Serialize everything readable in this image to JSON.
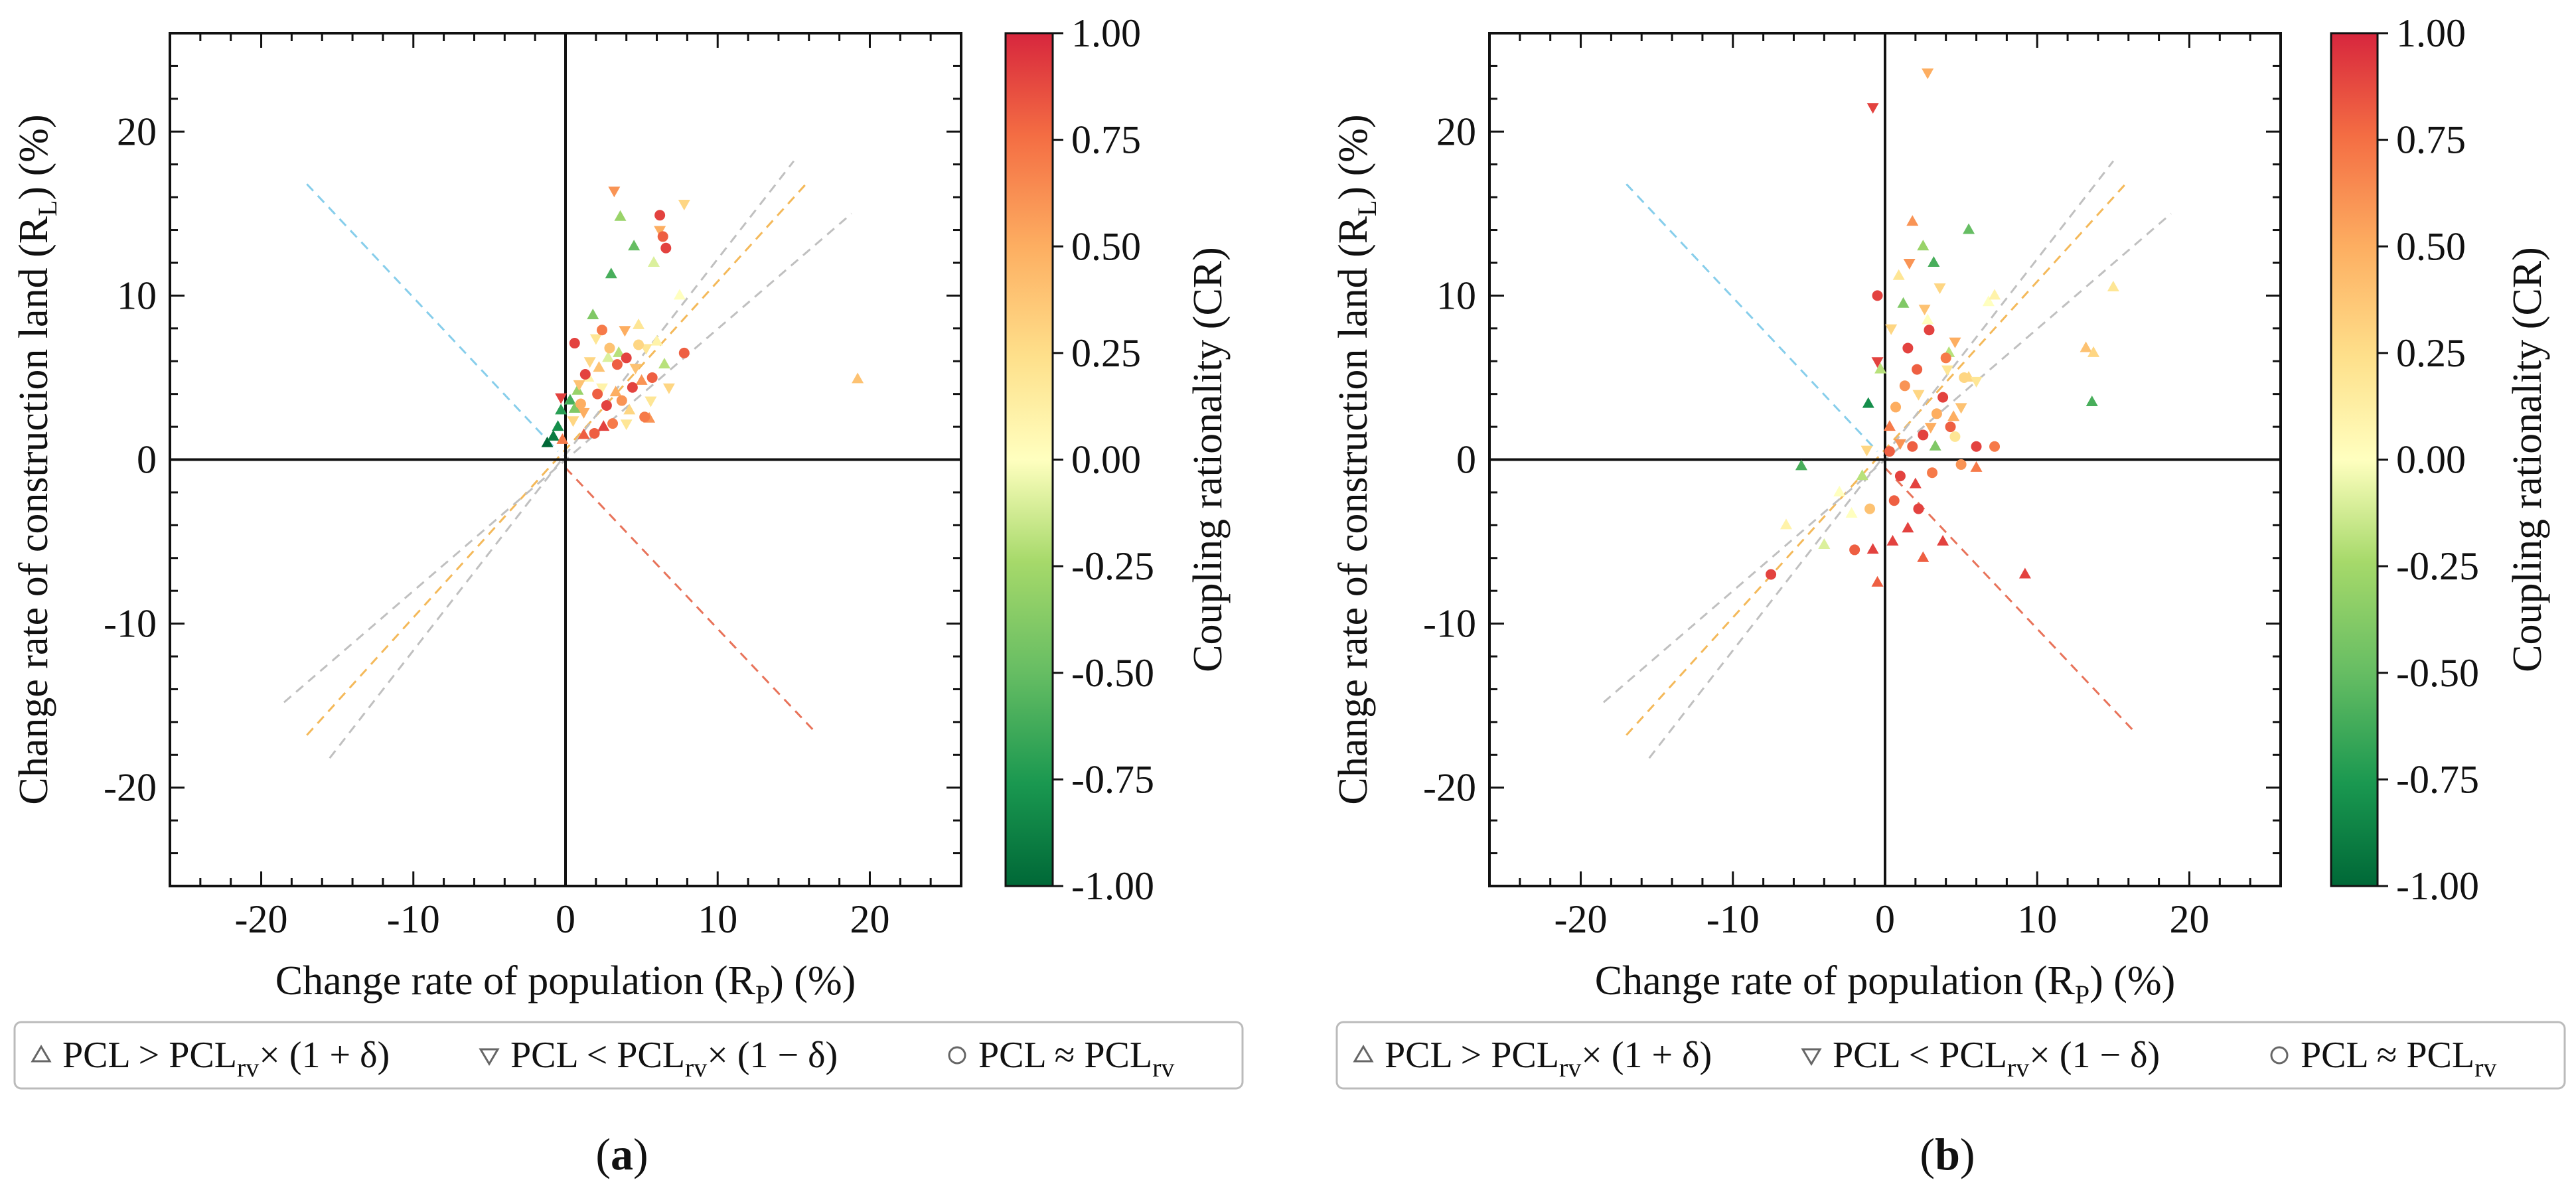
{
  "figure": {
    "panel_labels": [
      "(a)",
      "(b)"
    ],
    "colors": {
      "low": "#1a9850",
      "mid": "#ffffbf",
      "high": "#d7263d",
      "axis": "#111111",
      "legend_border": "#bbbbbb"
    },
    "legend": {
      "items": [
        {
          "symbol": "△",
          "marker": "triangle-up",
          "text_main": "PCL > PCL",
          "sub": "rv",
          "suffix": "× (1 + δ)"
        },
        {
          "symbol": "▽",
          "marker": "triangle-down",
          "text_main": "PCL < PCL",
          "sub": "rv",
          "suffix": "× (1 − δ)"
        },
        {
          "symbol": "○",
          "marker": "circle",
          "text_main": "PCL ≈ PCL",
          "sub": "rv",
          "suffix": ""
        }
      ]
    }
  },
  "chart_data": [
    {
      "type": "scatter",
      "panel": "(a)",
      "xlabel": {
        "main": "Change rate of population (R",
        "sub": "P",
        "end": ") (%)"
      },
      "ylabel": {
        "main": "Change rate of construction land (R",
        "sub": "L",
        "end": ") (%)"
      },
      "xlim": [
        -26,
        26
      ],
      "ylim": [
        -26,
        26
      ],
      "xticks": [
        -20,
        -10,
        0,
        10,
        20
      ],
      "yticks": [
        -20,
        -10,
        0,
        10,
        20
      ],
      "grid": false,
      "legend_position": "bottom",
      "colorbar": {
        "label": "Coupling rationality (CR)",
        "range": [
          -1,
          1
        ],
        "ticks": [
          "1.00",
          "0.75",
          "0.50",
          "0.25",
          "0.00",
          "-0.25",
          "-0.50",
          "-0.75",
          "-1.00"
        ],
        "colormap": "RdYlGn_r"
      },
      "reference_lines": [
        {
          "color": "#87ceeb",
          "points": [
            [
              -17,
              16.8
            ],
            [
              -0.5,
              0.5
            ]
          ]
        },
        {
          "color": "#e8735a",
          "points": [
            [
              0,
              -0.5
            ],
            [
              16.5,
              -16.7
            ]
          ]
        },
        {
          "color": "#f4b95a",
          "points": [
            [
              -17,
              -16.8
            ],
            [
              15.8,
              16.8
            ]
          ]
        },
        {
          "color": "#c0c0c0",
          "points": [
            [
              -18.5,
              -14.8
            ],
            [
              18.8,
              15
            ]
          ]
        },
        {
          "color": "#c0c0c0",
          "points": [
            [
              -15.5,
              -18.2
            ],
            [
              15,
              18.2
            ]
          ]
        }
      ],
      "series": [
        {
          "marker": "triangle-up",
          "points": [
            [
              -1.2,
              1.0,
              -1.0
            ],
            [
              -0.8,
              1.4,
              -0.9
            ],
            [
              -0.5,
              2.0,
              -0.8
            ],
            [
              -0.3,
              3.0,
              -0.7
            ],
            [
              0.3,
              3.6,
              -0.6
            ],
            [
              0.8,
              4.2,
              -0.3
            ],
            [
              1.5,
              5.0,
              0.1
            ],
            [
              2.2,
              5.6,
              0.4
            ],
            [
              3.5,
              6.5,
              -0.2
            ],
            [
              4.2,
              3.0,
              0.3
            ],
            [
              5.0,
              4.8,
              0.6
            ],
            [
              6.0,
              7.2,
              0.1
            ],
            [
              3.0,
              11.3,
              -0.6
            ],
            [
              4.5,
              13.0,
              -0.5
            ],
            [
              3.6,
              14.8,
              -0.3
            ],
            [
              5.8,
              12.0,
              -0.1
            ],
            [
              2.5,
              2.0,
              0.9
            ],
            [
              1.2,
              1.5,
              0.8
            ],
            [
              0.6,
              3.1,
              -0.4
            ],
            [
              19.2,
              4.9,
              0.4
            ],
            [
              4.8,
              8.2,
              0.2
            ],
            [
              2.8,
              6.2,
              -0.1
            ],
            [
              3.3,
              4.1,
              0.5
            ],
            [
              -0.2,
              1.2,
              0.7
            ],
            [
              6.5,
              5.8,
              -0.2
            ],
            [
              1.8,
              8.8,
              -0.4
            ],
            [
              7.5,
              10.0,
              0.0
            ],
            [
              5.5,
              2.5,
              0.6
            ]
          ]
        },
        {
          "marker": "triangle-down",
          "points": [
            [
              -0.3,
              3.8,
              0.9
            ],
            [
              0.5,
              2.4,
              0.3
            ],
            [
              1.2,
              2.9,
              0.5
            ],
            [
              2.0,
              7.4,
              0.2
            ],
            [
              3.2,
              16.4,
              0.6
            ],
            [
              6.2,
              14.0,
              0.5
            ],
            [
              7.8,
              15.6,
              0.3
            ],
            [
              4.6,
              5.6,
              0.4
            ],
            [
              5.6,
              3.6,
              0.2
            ],
            [
              2.4,
              4.4,
              0.1
            ],
            [
              1.6,
              6.0,
              0.3
            ],
            [
              3.9,
              7.9,
              0.5
            ],
            [
              5.3,
              6.8,
              0.2
            ],
            [
              0.9,
              4.6,
              0.4
            ],
            [
              4.0,
              2.2,
              0.2
            ],
            [
              6.8,
              4.4,
              0.3
            ]
          ]
        },
        {
          "marker": "circle",
          "points": [
            [
              0.6,
              7.1,
              0.9
            ],
            [
              1.3,
              5.2,
              0.9
            ],
            [
              2.1,
              4.0,
              0.8
            ],
            [
              2.7,
              3.3,
              0.9
            ],
            [
              3.4,
              5.8,
              0.8
            ],
            [
              4.4,
              4.4,
              0.9
            ],
            [
              5.2,
              2.6,
              0.7
            ],
            [
              6.2,
              14.9,
              0.9
            ],
            [
              6.4,
              13.6,
              0.8
            ],
            [
              6.6,
              12.9,
              0.9
            ],
            [
              7.8,
              6.5,
              0.8
            ],
            [
              3.1,
              2.2,
              0.7
            ],
            [
              1.9,
              1.6,
              0.8
            ],
            [
              4.0,
              6.2,
              0.9
            ],
            [
              2.4,
              7.9,
              0.7
            ],
            [
              5.7,
              5.0,
              0.8
            ],
            [
              3.7,
              3.6,
              0.6
            ],
            [
              1.0,
              3.4,
              0.5
            ],
            [
              4.8,
              7.0,
              0.3
            ],
            [
              2.9,
              6.8,
              0.4
            ]
          ]
        }
      ]
    },
    {
      "type": "scatter",
      "panel": "(b)",
      "xlabel": {
        "main": "Change rate of population (R",
        "sub": "P",
        "end": ") (%)"
      },
      "ylabel": {
        "main": "Change rate of construction land (R",
        "sub": "L",
        "end": ") (%)"
      },
      "xlim": [
        -26,
        26
      ],
      "ylim": [
        -26,
        26
      ],
      "xticks": [
        -20,
        -10,
        0,
        10,
        20
      ],
      "yticks": [
        -20,
        -10,
        0,
        10,
        20
      ],
      "grid": false,
      "legend_position": "bottom",
      "colorbar": {
        "label": "Coupling rationality (CR)",
        "range": [
          -1,
          1
        ],
        "ticks": [
          "1.00",
          "0.75",
          "0.50",
          "0.25",
          "0.00",
          "-0.25",
          "-0.50",
          "-0.75",
          "-1.00"
        ],
        "colormap": "RdYlGn_r"
      },
      "reference_lines": [
        {
          "color": "#87ceeb",
          "points": [
            [
              -17,
              16.8
            ],
            [
              -0.5,
              0.5
            ]
          ]
        },
        {
          "color": "#e8735a",
          "points": [
            [
              0,
              -0.5
            ],
            [
              16.5,
              -16.7
            ]
          ]
        },
        {
          "color": "#f4b95a",
          "points": [
            [
              -17,
              -16.8
            ],
            [
              15.8,
              16.8
            ]
          ]
        },
        {
          "color": "#c0c0c0",
          "points": [
            [
              -18.5,
              -14.8
            ],
            [
              18.8,
              15
            ]
          ]
        },
        {
          "color": "#c0c0c0",
          "points": [
            [
              -15.5,
              -18.2
            ],
            [
              15,
              18.2
            ]
          ]
        }
      ],
      "series": [
        {
          "marker": "triangle-up",
          "points": [
            [
              -5.5,
              -0.4,
              -0.6
            ],
            [
              -6.5,
              -4.0,
              0.1
            ],
            [
              -3.0,
              -2.0,
              0.0
            ],
            [
              -1.5,
              -1.0,
              -0.2
            ],
            [
              -0.5,
              -7.5,
              0.8
            ],
            [
              -0.8,
              -5.5,
              0.9
            ],
            [
              0.5,
              -5.0,
              0.9
            ],
            [
              1.5,
              -4.2,
              0.9
            ],
            [
              2.5,
              -6.0,
              0.8
            ],
            [
              3.8,
              -5.0,
              0.9
            ],
            [
              1.8,
              14.5,
              0.6
            ],
            [
              2.5,
              13.0,
              -0.3
            ],
            [
              3.2,
              12.0,
              -0.6
            ],
            [
              5.5,
              14.0,
              -0.5
            ],
            [
              0.9,
              11.2,
              0.2
            ],
            [
              1.2,
              9.5,
              -0.4
            ],
            [
              2.8,
              8.5,
              0.0
            ],
            [
              4.2,
              6.5,
              -0.2
            ],
            [
              5.5,
              5.0,
              0.3
            ],
            [
              6.8,
              9.6,
              0.0
            ],
            [
              7.2,
              10.0,
              0.1
            ],
            [
              13.2,
              6.8,
              0.4
            ],
            [
              13.7,
              6.5,
              0.3
            ],
            [
              15.0,
              10.5,
              0.2
            ],
            [
              13.6,
              3.5,
              -0.6
            ],
            [
              9.2,
              -7.0,
              0.9
            ],
            [
              0.3,
              2.0,
              0.7
            ],
            [
              -1.1,
              3.4,
              -0.8
            ],
            [
              -0.3,
              5.5,
              -0.2
            ],
            [
              2.0,
              -1.5,
              0.9
            ],
            [
              3.3,
              0.8,
              -0.4
            ],
            [
              4.5,
              2.6,
              0.5
            ],
            [
              -4.0,
              -5.2,
              -0.1
            ],
            [
              -2.2,
              -3.3,
              0.0
            ],
            [
              6.0,
              -0.5,
              0.7
            ]
          ]
        },
        {
          "marker": "triangle-down",
          "points": [
            [
              2.8,
              23.6,
              0.5
            ],
            [
              -0.8,
              21.5,
              0.9
            ],
            [
              -0.5,
              6.0,
              0.9
            ],
            [
              0.4,
              8.0,
              0.3
            ],
            [
              1.6,
              12.0,
              0.6
            ],
            [
              2.2,
              4.0,
              0.3
            ],
            [
              3.0,
              2.0,
              0.5
            ],
            [
              4.1,
              5.5,
              0.2
            ],
            [
              5.0,
              3.2,
              0.4
            ],
            [
              6.0,
              4.8,
              0.2
            ],
            [
              1.0,
              1.0,
              0.6
            ],
            [
              -1.2,
              0.6,
              0.3
            ],
            [
              2.6,
              9.2,
              0.4
            ],
            [
              3.6,
              10.5,
              0.3
            ],
            [
              4.6,
              7.2,
              0.5
            ]
          ]
        },
        {
          "marker": "circle",
          "points": [
            [
              -7.5,
              -7.0,
              0.9
            ],
            [
              -2.0,
              -5.5,
              0.8
            ],
            [
              -0.5,
              10.0,
              0.9
            ],
            [
              0.3,
              0.5,
              0.8
            ],
            [
              1.0,
              -1.0,
              0.9
            ],
            [
              1.8,
              0.8,
              0.8
            ],
            [
              2.5,
              1.5,
              0.9
            ],
            [
              3.1,
              -0.8,
              0.7
            ],
            [
              3.8,
              3.8,
              0.9
            ],
            [
              4.3,
              2.0,
              0.8
            ],
            [
              5.0,
              -0.3,
              0.6
            ],
            [
              6.0,
              0.8,
              0.9
            ],
            [
              7.2,
              0.8,
              0.7
            ],
            [
              1.5,
              6.8,
              0.9
            ],
            [
              2.1,
              5.5,
              0.8
            ],
            [
              2.9,
              7.9,
              0.9
            ],
            [
              4.0,
              6.2,
              0.7
            ],
            [
              0.7,
              3.2,
              0.5
            ],
            [
              1.3,
              4.5,
              0.6
            ],
            [
              3.4,
              2.8,
              0.5
            ],
            [
              -1.0,
              -3.0,
              0.4
            ],
            [
              0.6,
              -2.5,
              0.8
            ],
            [
              5.2,
              5.0,
              0.3
            ],
            [
              2.2,
              -3.0,
              0.9
            ],
            [
              4.6,
              1.4,
              0.2
            ]
          ]
        }
      ]
    }
  ]
}
